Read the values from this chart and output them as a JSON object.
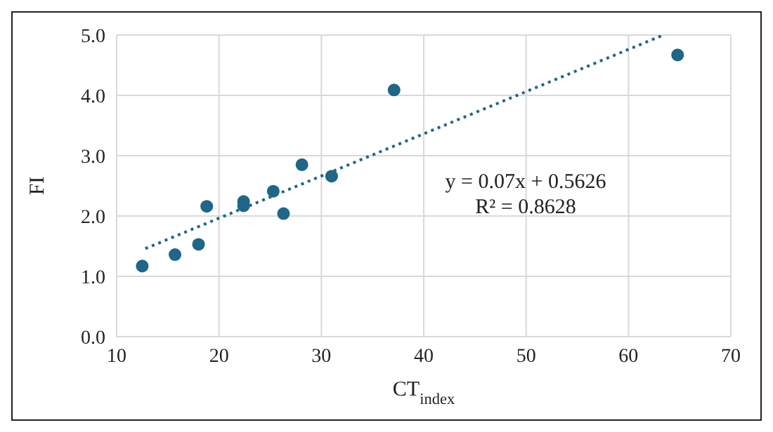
{
  "chart_data": {
    "type": "scatter",
    "xlabel": "CT$_{index}$",
    "ylabel": "FI",
    "xlim": [
      10,
      70
    ],
    "xticks": [
      10,
      20,
      30,
      40,
      50,
      60,
      70
    ],
    "ylim": [
      0,
      5
    ],
    "yticks": [
      {
        "value": 0,
        "label": "0.0"
      },
      {
        "value": 1,
        "label": "1.0"
      },
      {
        "value": 2,
        "label": "2.0"
      },
      {
        "value": 3,
        "label": "3.0"
      },
      {
        "value": 4,
        "label": "4.0"
      },
      {
        "value": 5,
        "label": "5.0"
      }
    ],
    "grid": true,
    "marker": "circle",
    "series": [
      {
        "color": "#1f6688",
        "x": [
          12.5,
          15.7,
          18.0,
          18.8,
          22.4,
          22.4,
          25.3,
          26.3,
          28.1,
          31.0,
          37.1,
          64.8
        ],
        "values": [
          1.17,
          1.36,
          1.53,
          2.16,
          2.24,
          2.17,
          2.41,
          2.04,
          2.85,
          2.66,
          4.09,
          4.67
        ]
      },
      {
        "type": "line",
        "color": "#1f6688",
        "line_style": "dotted",
        "marker": "none",
        "x": [
          12.8,
          63.4
        ],
        "values": [
          1.46,
          5.0
        ]
      }
    ],
    "annotations": [
      "y = 0.07x + 0.5626",
      "R² = 0.8628"
    ]
  }
}
